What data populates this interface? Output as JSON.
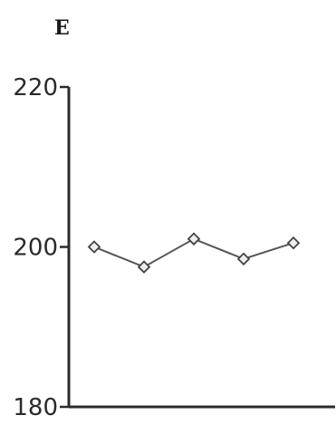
{
  "chart_data": {
    "type": "line",
    "panel_label": "E",
    "title": "",
    "xlabel": "",
    "ylabel": "",
    "ylim": [
      180,
      220
    ],
    "yticks": [
      180,
      200,
      220
    ],
    "ytick_labels": [
      "180",
      "200",
      "220"
    ],
    "grid": false,
    "legend": "none",
    "x": [
      1,
      2,
      3,
      4,
      5
    ],
    "series": [
      {
        "values": [
          200,
          197.5,
          201,
          198.5,
          200.5
        ],
        "color": "#555555",
        "marker": "diamond"
      }
    ]
  }
}
